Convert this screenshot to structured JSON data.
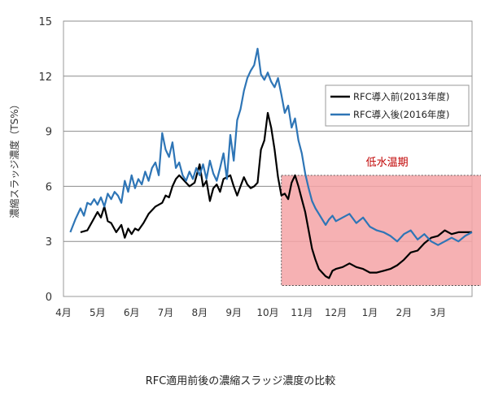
{
  "caption": "RFC適用前後の濃縮スラッジ濃度の比較",
  "chart_data": {
    "type": "line",
    "ylabel": "濃縮スラッジ濃度（TS%）",
    "xlabel": "",
    "ylim": [
      0,
      15
    ],
    "yticks": [
      0,
      3,
      6,
      9,
      12,
      15
    ],
    "x_tick_labels": [
      "4月",
      "5月",
      "6月",
      "7月",
      "8月",
      "9月",
      "10月",
      "11月",
      "12月",
      "1月",
      "2月",
      "3月"
    ],
    "grid": "horizontal",
    "legend_position": "top-right",
    "shaded_region": {
      "label": "低水温期",
      "x_start": 6.4,
      "x_end": 12.8,
      "y_start": 0.6,
      "y_end": 6.6,
      "fill": "#f5a3a6",
      "label_color": "#c00000"
    },
    "series": [
      {
        "name": "RFC導入前(2013年度)",
        "color": "#000000",
        "x": [
          0.5,
          0.7,
          0.85,
          1.0,
          1.1,
          1.2,
          1.3,
          1.4,
          1.55,
          1.7,
          1.8,
          1.9,
          2.0,
          2.1,
          2.2,
          2.35,
          2.5,
          2.7,
          2.9,
          3.0,
          3.1,
          3.2,
          3.3,
          3.4,
          3.55,
          3.7,
          3.85,
          4.0,
          4.1,
          4.2,
          4.3,
          4.4,
          4.5,
          4.6,
          4.7,
          4.8,
          4.9,
          5.0,
          5.1,
          5.2,
          5.3,
          5.4,
          5.5,
          5.6,
          5.7,
          5.8,
          5.9,
          6.0,
          6.1,
          6.2,
          6.3,
          6.4,
          6.5,
          6.6,
          6.7,
          6.8,
          6.9,
          7.0,
          7.1,
          7.2,
          7.3,
          7.4,
          7.5,
          7.6,
          7.7,
          7.8,
          7.9,
          8.0,
          8.2,
          8.4,
          8.6,
          8.8,
          9.0,
          9.2,
          9.4,
          9.6,
          9.8,
          10.0,
          10.2,
          10.4,
          10.6,
          10.8,
          11.0,
          11.2,
          11.4,
          11.6,
          11.8,
          12.0
        ],
        "values": [
          3.5,
          3.6,
          4.1,
          4.6,
          4.3,
          4.9,
          4.1,
          4.0,
          3.5,
          3.9,
          3.2,
          3.7,
          3.4,
          3.7,
          3.6,
          4.0,
          4.5,
          4.9,
          5.1,
          5.5,
          5.4,
          6.0,
          6.4,
          6.6,
          6.3,
          6.0,
          6.2,
          7.2,
          6.0,
          6.3,
          5.2,
          5.9,
          6.1,
          5.7,
          6.4,
          6.5,
          6.6,
          6.0,
          5.5,
          6.0,
          6.5,
          6.1,
          5.9,
          6.0,
          6.2,
          8.0,
          8.5,
          10.0,
          9.2,
          8.0,
          6.5,
          5.5,
          5.6,
          5.3,
          6.2,
          6.6,
          6.0,
          5.3,
          4.6,
          3.6,
          2.6,
          2.0,
          1.5,
          1.3,
          1.1,
          1.0,
          1.4,
          1.5,
          1.6,
          1.8,
          1.6,
          1.5,
          1.3,
          1.3,
          1.4,
          1.5,
          1.7,
          2.0,
          2.4,
          2.5,
          2.9,
          3.2,
          3.3,
          3.6,
          3.4,
          3.5,
          3.5,
          3.5
        ]
      },
      {
        "name": "RFC導入後(2016年度)",
        "color": "#2e75b6",
        "x": [
          0.2,
          0.35,
          0.5,
          0.6,
          0.7,
          0.8,
          0.9,
          1.0,
          1.1,
          1.2,
          1.3,
          1.4,
          1.5,
          1.6,
          1.7,
          1.8,
          1.9,
          2.0,
          2.1,
          2.2,
          2.3,
          2.4,
          2.5,
          2.6,
          2.7,
          2.8,
          2.9,
          3.0,
          3.1,
          3.2,
          3.3,
          3.4,
          3.5,
          3.6,
          3.7,
          3.8,
          3.9,
          4.0,
          4.1,
          4.2,
          4.3,
          4.4,
          4.5,
          4.6,
          4.7,
          4.8,
          4.9,
          5.0,
          5.1,
          5.2,
          5.3,
          5.4,
          5.5,
          5.6,
          5.7,
          5.8,
          5.9,
          6.0,
          6.1,
          6.2,
          6.3,
          6.4,
          6.5,
          6.6,
          6.7,
          6.8,
          6.9,
          7.0,
          7.1,
          7.2,
          7.3,
          7.4,
          7.5,
          7.6,
          7.7,
          7.8,
          7.9,
          8.0,
          8.2,
          8.4,
          8.6,
          8.8,
          9.0,
          9.2,
          9.4,
          9.6,
          9.8,
          10.0,
          10.2,
          10.4,
          10.6,
          10.8,
          11.0,
          11.2,
          11.4,
          11.6,
          11.8,
          12.0
        ],
        "values": [
          3.5,
          4.2,
          4.8,
          4.4,
          5.1,
          5.0,
          5.3,
          5.0,
          5.4,
          4.9,
          5.6,
          5.3,
          5.7,
          5.5,
          5.1,
          6.3,
          5.7,
          6.6,
          5.9,
          6.4,
          6.1,
          6.8,
          6.3,
          7.0,
          7.3,
          6.6,
          8.9,
          8.0,
          7.6,
          8.4,
          7.0,
          7.3,
          6.6,
          6.3,
          6.8,
          6.4,
          7.0,
          6.6,
          7.2,
          6.4,
          7.4,
          6.7,
          6.3,
          7.0,
          7.8,
          6.4,
          8.8,
          7.4,
          9.6,
          10.2,
          11.2,
          11.9,
          12.3,
          12.6,
          13.5,
          12.1,
          11.8,
          12.2,
          11.7,
          11.4,
          11.9,
          11.0,
          10.0,
          10.4,
          9.2,
          9.7,
          8.5,
          7.8,
          6.7,
          5.9,
          5.2,
          4.8,
          4.5,
          4.2,
          3.9,
          4.2,
          4.4,
          4.1,
          4.3,
          4.5,
          4.0,
          4.3,
          3.8,
          3.6,
          3.5,
          3.3,
          3.0,
          3.4,
          3.6,
          3.1,
          3.4,
          3.0,
          2.8,
          3.0,
          3.2,
          3.0,
          3.3,
          3.5
        ]
      }
    ]
  }
}
